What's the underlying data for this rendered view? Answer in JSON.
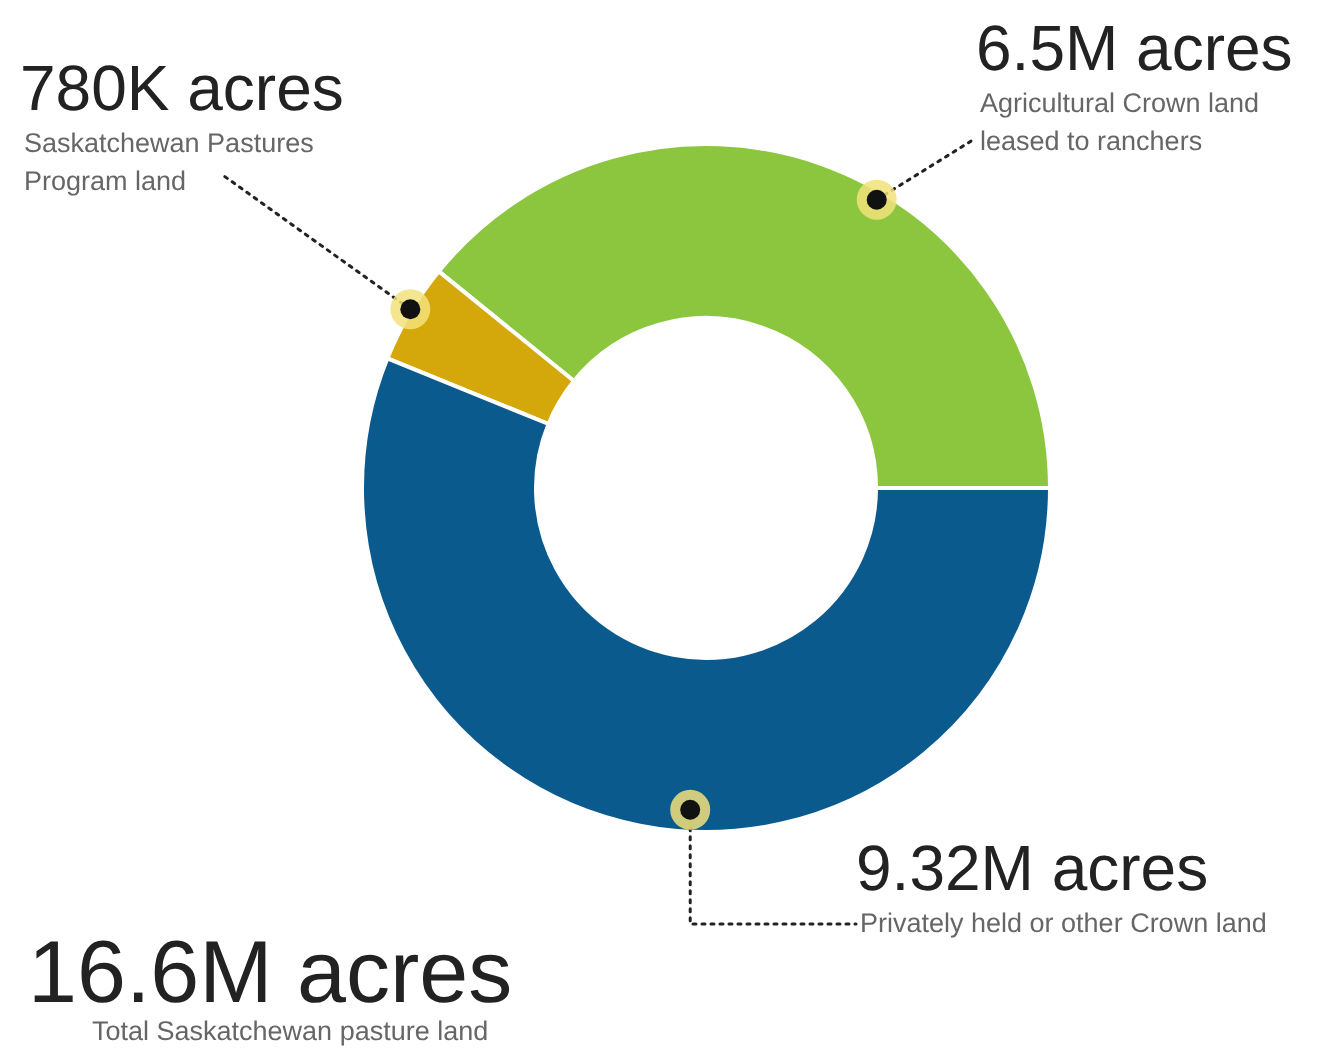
{
  "chart_data": {
    "type": "donut",
    "categories": [
      "Agricultural Crown land leased to ranchers",
      "Saskatchewan Pastures Program land",
      "Privately held or other Crown land"
    ],
    "values": [
      6500000,
      780000,
      9320000
    ],
    "colors": [
      "#8cc63f",
      "#d4a80a",
      "#0b5a8e"
    ],
    "value_labels": [
      "6.5M acres",
      "780K acres",
      "9.32M acres"
    ],
    "annotations": [
      "16.6M acres",
      "Total Saskatchewan pasture land"
    ]
  }
}
